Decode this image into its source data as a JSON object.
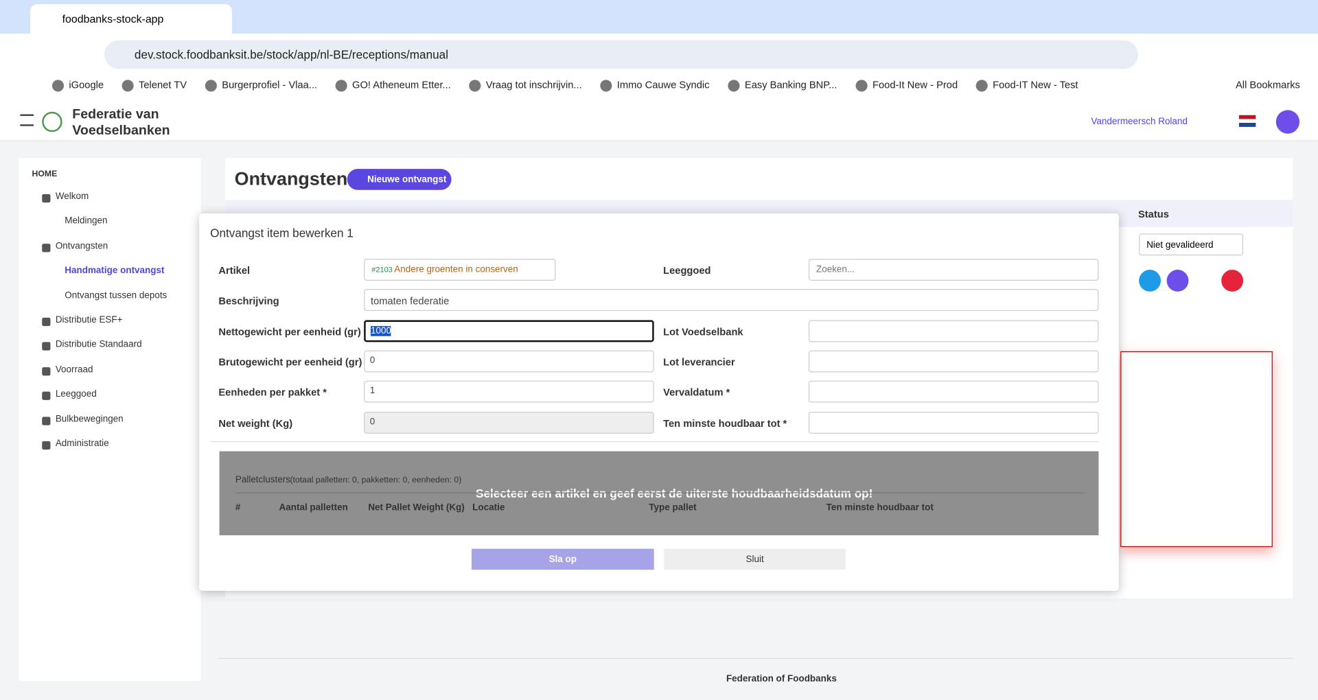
{
  "browser": {
    "tab_title": "foodbanks-stock-app",
    "url": "dev.stock.foodbanksit.be/stock/app/nl-BE/receptions/manual",
    "bookmarks": [
      "iGoogle",
      "Telenet TV",
      "Burgerprofiel - Vlaa...",
      "GO! Atheneum Etter...",
      "Vraag tot inschrijvin...",
      "Immo Cauwe Syndic",
      "Easy Banking  BNP...",
      "Food-It New - Prod",
      "Food-IT New - Test"
    ],
    "all_bookmarks": "All Bookmarks"
  },
  "header": {
    "brand": [
      "Federatie van",
      "Voedselbanken"
    ],
    "user": "Vandermeersch Roland"
  },
  "sidebar": {
    "home": "HOME",
    "items": [
      {
        "label": "Welkom",
        "children": [
          "Meldingen"
        ]
      },
      {
        "label": "Ontvangsten",
        "children": [
          "Handmatige ontvangst",
          "Ontvangst tussen depots"
        ]
      },
      {
        "label": "Distributie ESF+"
      },
      {
        "label": "Distributie Standaard"
      },
      {
        "label": "Voorraad"
      },
      {
        "label": "Leeggoed"
      },
      {
        "label": "Bulkbewegingen"
      },
      {
        "label": "Administratie"
      }
    ]
  },
  "page": {
    "title": "Ontvangsten",
    "new_button": "Nieuwe ontvangst",
    "status_header": "Status",
    "status_value": "Niet gevalideerd"
  },
  "dialog": {
    "title": "Ontvangst item bewerken 1",
    "left_fields": [
      {
        "label": "Artikel",
        "code": "#2103",
        "value": "Andere groenten in conserven"
      },
      {
        "label": "Nettogewicht per eenheid (gr) *",
        "value": 1000
      },
      {
        "label": "Brutogewicht per eenheid (gr)",
        "value": 0
      },
      {
        "label": "Eenheden per pakket *",
        "value": 1
      },
      {
        "label": "Net weight (Kg)",
        "value": 0
      }
    ],
    "description": {
      "label": "Beschrijving",
      "value": "tomaten federatie"
    },
    "right_fields": [
      {
        "label": "Leeggoed",
        "placeholder": "Zoeken..."
      },
      {
        "label": "Lot Voedselbank"
      },
      {
        "label": "Lot leverancier"
      },
      {
        "label": "Vervaldatum *"
      },
      {
        "label": "Ten minste houdbaar tot *"
      }
    ],
    "pallets": {
      "title": "Palletclusters",
      "summary": "(totaal palletten: 0, pakketten: 0, eenheden: 0)",
      "message": "Selecteer een artikel en geef eerst de uiterste houdbaarheidsdatum op!",
      "columns": [
        "#",
        "Aantal palletten",
        "Net Pallet Weight (Kg)",
        "Locatie",
        "Type pallet",
        "Ten minste houdbaar tot"
      ]
    },
    "save": "Sla op",
    "close": "Sluit"
  },
  "footer": "Federation of Foodbanks"
}
